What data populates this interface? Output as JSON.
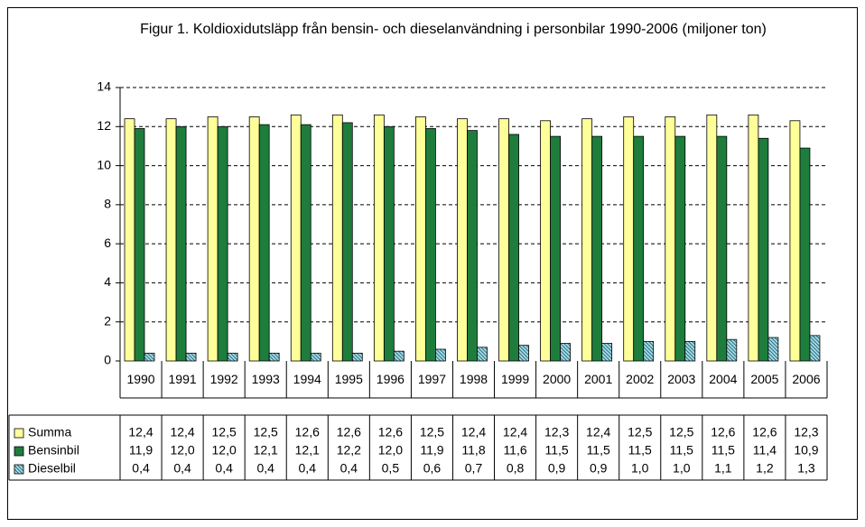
{
  "chart_data": {
    "type": "bar",
    "title": "Figur 1. Koldioxidutsläpp från bensin- och dieselanvändning i personbilar 1990-2006 (miljoner ton)",
    "categories": [
      "1990",
      "1991",
      "1992",
      "1993",
      "1994",
      "1995",
      "1996",
      "1997",
      "1998",
      "1999",
      "2000",
      "2001",
      "2002",
      "2003",
      "2004",
      "2005",
      "2006"
    ],
    "series": [
      {
        "name": "Summa",
        "color": "#ffff99",
        "values": [
          12.4,
          12.4,
          12.5,
          12.5,
          12.6,
          12.6,
          12.6,
          12.5,
          12.4,
          12.4,
          12.3,
          12.4,
          12.5,
          12.5,
          12.6,
          12.6,
          12.3
        ],
        "value_labels": [
          "12,4",
          "12,4",
          "12,5",
          "12,5",
          "12,6",
          "12,6",
          "12,6",
          "12,5",
          "12,4",
          "12,4",
          "12,3",
          "12,4",
          "12,5",
          "12,5",
          "12,6",
          "12,6",
          "12,3"
        ]
      },
      {
        "name": "Bensinbil",
        "color": "#1e7d3c",
        "values": [
          11.9,
          12.0,
          12.0,
          12.1,
          12.1,
          12.2,
          12.0,
          11.9,
          11.8,
          11.6,
          11.5,
          11.5,
          11.5,
          11.5,
          11.5,
          11.4,
          10.9
        ],
        "value_labels": [
          "11,9",
          "12,0",
          "12,0",
          "12,1",
          "12,1",
          "12,2",
          "12,0",
          "11,9",
          "11,8",
          "11,6",
          "11,5",
          "11,5",
          "11,5",
          "11,5",
          "11,5",
          "11,4",
          "10,9"
        ]
      },
      {
        "name": "Dieselbil",
        "color": "#a8dce6",
        "values": [
          0.4,
          0.4,
          0.4,
          0.4,
          0.4,
          0.4,
          0.5,
          0.6,
          0.7,
          0.8,
          0.9,
          0.9,
          1.0,
          1.0,
          1.1,
          1.2,
          1.3
        ],
        "value_labels": [
          "0,4",
          "0,4",
          "0,4",
          "0,4",
          "0,4",
          "0,4",
          "0,5",
          "0,6",
          "0,7",
          "0,8",
          "0,9",
          "0,9",
          "1,0",
          "1,0",
          "1,1",
          "1,2",
          "1,3"
        ]
      }
    ],
    "ylim": [
      0,
      14
    ],
    "yticks": [
      0,
      2,
      4,
      6,
      8,
      10,
      12,
      14
    ],
    "grid": true
  }
}
